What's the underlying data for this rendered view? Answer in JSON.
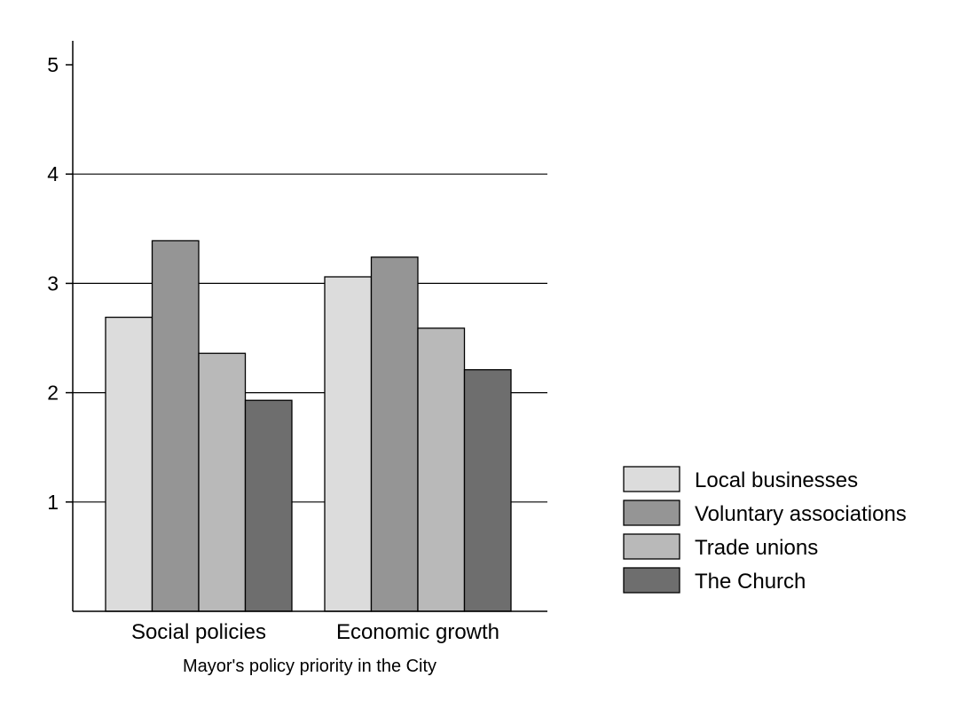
{
  "chart_data": {
    "type": "bar",
    "title": "",
    "xlabel": "Mayor's policy priority in the City",
    "ylabel": "",
    "categories": [
      "Social policies",
      "Economic growth"
    ],
    "series": [
      {
        "name": "Local businesses",
        "values": [
          2.69,
          3.06
        ],
        "color": "#dcdcdc"
      },
      {
        "name": "Voluntary associations",
        "values": [
          3.39,
          3.24
        ],
        "color": "#959595"
      },
      {
        "name": "Trade unions",
        "values": [
          2.36,
          2.59
        ],
        "color": "#b9b9b9"
      },
      {
        "name": "The Church",
        "values": [
          1.93,
          2.21
        ],
        "color": "#6e6e6e"
      }
    ],
    "ylim": [
      0,
      5
    ],
    "yticks": [
      "1",
      "2",
      "3",
      "4",
      "5"
    ],
    "grid": true,
    "legend_position": "right"
  }
}
